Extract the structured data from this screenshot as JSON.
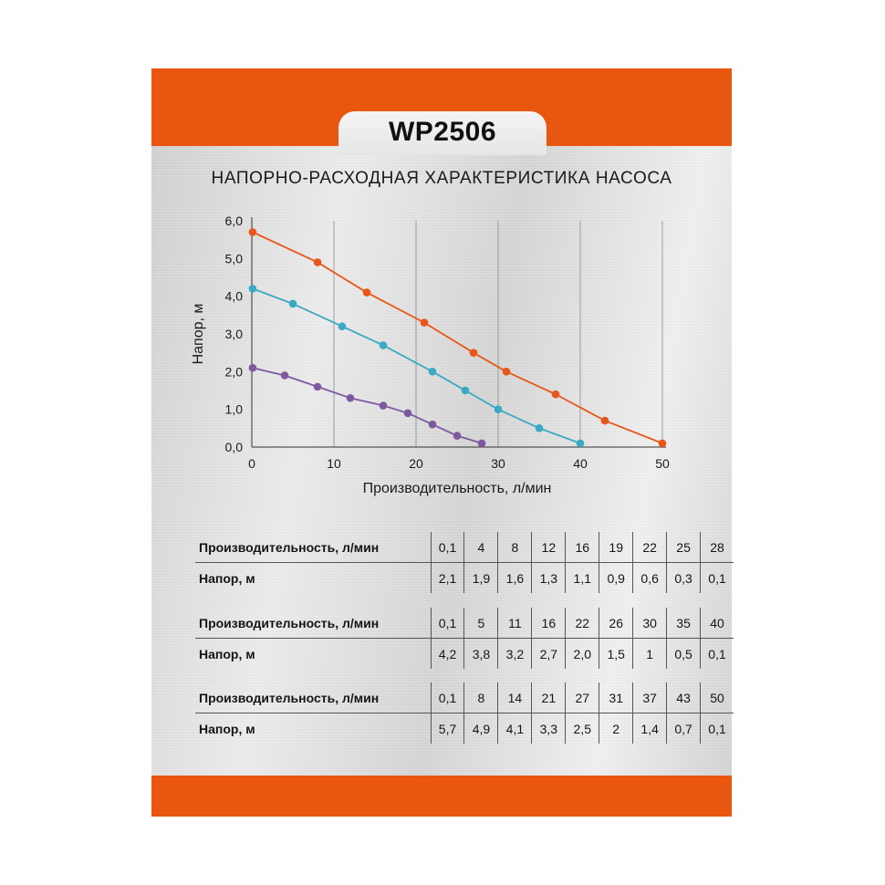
{
  "header": {
    "model": "WP2506"
  },
  "chart_data": {
    "type": "line",
    "title": "НАПОРНО-РАСХОДНАЯ ХАРАКТЕРИСТИКА НАСОСА",
    "xlabel": "Производительность, л/мин",
    "ylabel": "Напор, м",
    "xlim": [
      0,
      50
    ],
    "ylim": [
      0,
      6
    ],
    "x_ticks": [
      "0",
      "10",
      "20",
      "30",
      "40",
      "50"
    ],
    "y_ticks": [
      "0,0",
      "1,0",
      "2,0",
      "3,0",
      "4,0",
      "5,0",
      "6,0"
    ],
    "grid": "vertical",
    "series": [
      {
        "color": "#7d5aa0",
        "x": [
          0.1,
          4,
          8,
          12,
          16,
          19,
          22,
          25,
          28
        ],
        "y": [
          2.1,
          1.9,
          1.6,
          1.3,
          1.1,
          0.9,
          0.6,
          0.3,
          0.1
        ]
      },
      {
        "color": "#3aa9c5",
        "x": [
          0.1,
          5,
          11,
          16,
          22,
          26,
          30,
          35,
          40
        ],
        "y": [
          4.2,
          3.8,
          3.2,
          2.7,
          2.0,
          1.5,
          1.0,
          0.5,
          0.1
        ]
      },
      {
        "color": "#e8561a",
        "x": [
          0.1,
          8,
          14,
          21,
          27,
          31,
          37,
          43,
          50
        ],
        "y": [
          5.7,
          4.9,
          4.1,
          3.3,
          2.5,
          2.0,
          1.4,
          0.7,
          0.1
        ]
      }
    ]
  },
  "tables": [
    {
      "flow_label": "Производительность, л/мин",
      "head_label": "Напор, м",
      "flow": [
        "0,1",
        "4",
        "8",
        "12",
        "16",
        "19",
        "22",
        "25",
        "28"
      ],
      "head": [
        "2,1",
        "1,9",
        "1,6",
        "1,3",
        "1,1",
        "0,9",
        "0,6",
        "0,3",
        "0,1"
      ]
    },
    {
      "flow_label": "Производительность, л/мин",
      "head_label": "Напор, м",
      "flow": [
        "0,1",
        "5",
        "11",
        "16",
        "22",
        "26",
        "30",
        "35",
        "40"
      ],
      "head": [
        "4,2",
        "3,8",
        "3,2",
        "2,7",
        "2,0",
        "1,5",
        "1",
        "0,5",
        "0,1"
      ]
    },
    {
      "flow_label": "Производительность, л/мин",
      "head_label": "Напор, м",
      "flow": [
        "0,1",
        "8",
        "14",
        "21",
        "27",
        "31",
        "37",
        "43",
        "50"
      ],
      "head": [
        "5,7",
        "4,9",
        "4,1",
        "3,3",
        "2,5",
        "2",
        "1,4",
        "0,7",
        "0,1"
      ]
    }
  ]
}
